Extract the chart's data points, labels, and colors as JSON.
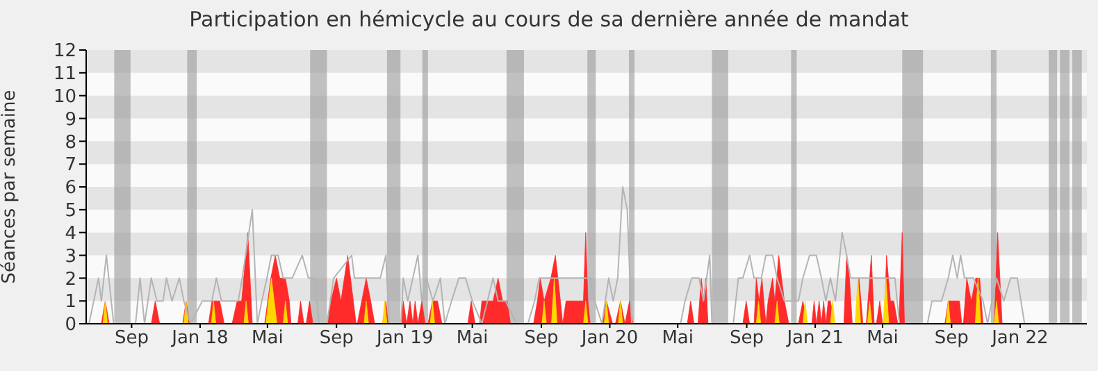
{
  "chart_data": {
    "type": "area",
    "title": "Participation en hémicycle au cours de sa dernière année de mandat",
    "ylabel": "Séances par semaine",
    "xlim": [
      "2017-06-12",
      "2022-04-30"
    ],
    "xticks": [
      {
        "value": "2017-09-01",
        "label": "Sep"
      },
      {
        "value": "2018-01-01",
        "label": "Jan 18"
      },
      {
        "value": "2018-05-01",
        "label": "Mai"
      },
      {
        "value": "2018-09-01",
        "label": "Sep"
      },
      {
        "value": "2019-01-01",
        "label": "Jan 19"
      },
      {
        "value": "2019-05-01",
        "label": "Mai"
      },
      {
        "value": "2019-09-01",
        "label": "Sep"
      },
      {
        "value": "2020-01-01",
        "label": "Jan 20"
      },
      {
        "value": "2020-05-01",
        "label": "Mai"
      },
      {
        "value": "2020-09-01",
        "label": "Sep"
      },
      {
        "value": "2021-01-01",
        "label": "Jan 21"
      },
      {
        "value": "2021-05-01",
        "label": "Mai"
      },
      {
        "value": "2021-09-01",
        "label": "Sep"
      },
      {
        "value": "2022-01-01",
        "label": "Jan 22"
      }
    ],
    "ylim": [
      0,
      12
    ],
    "yticks": [
      0,
      1,
      2,
      3,
      4,
      5,
      6,
      7,
      8,
      9,
      10,
      11,
      12
    ],
    "marker": "none",
    "bands": [
      {
        "axis": "y",
        "from": 1,
        "to": 2,
        "color": "#e4e4e4"
      },
      {
        "axis": "y",
        "from": 3,
        "to": 4,
        "color": "#e4e4e4"
      },
      {
        "axis": "y",
        "from": 5,
        "to": 6,
        "color": "#e4e4e4"
      },
      {
        "axis": "y",
        "from": 7,
        "to": 8,
        "color": "#e4e4e4"
      },
      {
        "axis": "y",
        "from": 9,
        "to": 10,
        "color": "#e4e4e4"
      },
      {
        "axis": "y",
        "from": 11,
        "to": 12,
        "color": "#e4e4e4"
      },
      {
        "axis": "x",
        "from": "2017-08-01",
        "to": "2017-08-30",
        "color": "#999999"
      },
      {
        "axis": "x",
        "from": "2017-12-09",
        "to": "2017-12-26",
        "color": "#999999"
      },
      {
        "axis": "x",
        "from": "2018-07-16",
        "to": "2018-08-15",
        "color": "#999999"
      },
      {
        "axis": "x",
        "from": "2018-11-30",
        "to": "2018-12-24",
        "color": "#999999"
      },
      {
        "axis": "x",
        "from": "2019-02-01",
        "to": "2019-02-11",
        "color": "#999999"
      },
      {
        "axis": "x",
        "from": "2019-07-01",
        "to": "2019-08-01",
        "color": "#999999"
      },
      {
        "axis": "x",
        "from": "2019-11-22",
        "to": "2019-12-07",
        "color": "#999999"
      },
      {
        "axis": "x",
        "from": "2020-02-04",
        "to": "2020-02-14",
        "color": "#999999"
      },
      {
        "axis": "x",
        "from": "2020-07-01",
        "to": "2020-07-30",
        "color": "#999999"
      },
      {
        "axis": "x",
        "from": "2020-11-19",
        "to": "2020-11-29",
        "color": "#999999"
      },
      {
        "axis": "x",
        "from": "2021-06-05",
        "to": "2021-07-12",
        "color": "#999999"
      },
      {
        "axis": "x",
        "from": "2021-11-10",
        "to": "2021-11-20",
        "color": "#999999"
      },
      {
        "axis": "x",
        "from": "2022-02-21",
        "to": "2022-03-08",
        "color": "#999999"
      },
      {
        "axis": "x",
        "from": "2022-03-13",
        "to": "2022-03-30",
        "color": "#999999"
      },
      {
        "axis": "x",
        "from": "2022-04-04",
        "to": "2022-04-21",
        "color": "#999999"
      }
    ],
    "series": [
      {
        "type": "line",
        "color": "#b4b4b4",
        "x": [
          "2017-06-17",
          "2017-07-04",
          "2017-07-09",
          "2017-07-18",
          "2017-07-31",
          "2017-09-08",
          "2017-09-16",
          "2017-09-24",
          "2017-10-06",
          "2017-10-16",
          "2017-10-27",
          "2017-11-02",
          "2017-11-12",
          "2017-11-25",
          "2017-12-03",
          "2017-12-15",
          "2018-01-05",
          "2018-01-22",
          "2018-01-30",
          "2018-02-08",
          "2018-02-21",
          "2018-03-10",
          "2018-03-17",
          "2018-04-04",
          "2018-04-13",
          "2018-04-21",
          "2018-04-30",
          "2018-05-08",
          "2018-05-20",
          "2018-05-29",
          "2018-06-14",
          "2018-07-02",
          "2018-07-13",
          "2018-07-24",
          "2018-08-01",
          "2018-08-15",
          "2018-08-27",
          "2018-09-28",
          "2018-10-03",
          "2018-11-18",
          "2018-11-28",
          "2018-12-04",
          "2018-12-25",
          "2018-12-29",
          "2019-01-06",
          "2019-01-15",
          "2019-01-24",
          "2019-01-31",
          "2019-02-08",
          "2019-02-20",
          "2019-03-05",
          "2019-03-13",
          "2019-03-25",
          "2019-04-07",
          "2019-04-19",
          "2019-05-01",
          "2019-05-18",
          "2019-06-07",
          "2019-06-16",
          "2019-06-29",
          "2019-07-19",
          "2019-08-08",
          "2019-08-20",
          "2019-08-28",
          "2019-09-14",
          "2019-10-16",
          "2019-11-15",
          "2019-11-27",
          "2019-12-05",
          "2019-12-18",
          "2019-12-30",
          "2020-01-07",
          "2020-01-15",
          "2020-01-24",
          "2020-02-01",
          "2020-02-09",
          "2020-05-06",
          "2020-05-14",
          "2020-05-26",
          "2020-06-08",
          "2020-06-16",
          "2020-06-27",
          "2020-07-01",
          "2020-08-08",
          "2020-08-17",
          "2020-08-25",
          "2020-09-06",
          "2020-09-14",
          "2020-09-27",
          "2020-10-05",
          "2020-10-17",
          "2020-10-25",
          "2020-11-07",
          "2020-12-02",
          "2020-12-10",
          "2020-12-22",
          "2021-01-03",
          "2021-01-12",
          "2021-01-20",
          "2021-01-28",
          "2021-02-06",
          "2021-02-18",
          "2021-02-26",
          "2021-03-05",
          "2021-03-23",
          "2021-04-04",
          "2021-04-20",
          "2021-05-03",
          "2021-05-15",
          "2021-05-23",
          "2021-05-31",
          "2021-07-20",
          "2021-07-28",
          "2021-08-14",
          "2021-08-26",
          "2021-09-03",
          "2021-09-11",
          "2021-09-17",
          "2021-09-24",
          "2021-10-10",
          "2021-10-27",
          "2021-11-04",
          "2021-11-20",
          "2021-12-03",
          "2021-12-15",
          "2021-12-27",
          "2022-01-09"
        ],
        "values": [
          0,
          2,
          1,
          3,
          0,
          0,
          2,
          0,
          2,
          1,
          1,
          2,
          1,
          2,
          1,
          0,
          1,
          1,
          2,
          1,
          1,
          1,
          2,
          5,
          0,
          1,
          2,
          3,
          3,
          2,
          2,
          3,
          2,
          2,
          0,
          0,
          2,
          3,
          2,
          2,
          3,
          0,
          0,
          2,
          1,
          2,
          3,
          1,
          2,
          1,
          2,
          0,
          1,
          2,
          2,
          1,
          0,
          2,
          1,
          1,
          0,
          0,
          1,
          2,
          2,
          2,
          2,
          2,
          1,
          0,
          2,
          1,
          2,
          6,
          5,
          0,
          0,
          1,
          2,
          2,
          1,
          3,
          0,
          0,
          2,
          2,
          3,
          2,
          2,
          3,
          3,
          2,
          1,
          1,
          2,
          3,
          3,
          2,
          1,
          2,
          1,
          4,
          3,
          2,
          2,
          2,
          2,
          2,
          2,
          2,
          0,
          0,
          1,
          1,
          2,
          3,
          2,
          3,
          2,
          2,
          1,
          0,
          2,
          1,
          2,
          2,
          0
        ]
      },
      {
        "color": "#ff2a2a",
        "x": [
          "2017-07-09",
          "2017-07-16",
          "2017-07-23",
          "2017-10-06",
          "2017-10-13",
          "2017-10-21",
          "2017-12-01",
          "2017-12-07",
          "2017-12-14",
          "2018-01-16",
          "2018-01-22",
          "2018-02-05",
          "2018-02-13",
          "2018-02-27",
          "2018-03-08",
          "2018-03-16",
          "2018-03-27",
          "2018-04-04",
          "2018-04-26",
          "2018-05-07",
          "2018-05-15",
          "2018-05-23",
          "2018-06-02",
          "2018-06-09",
          "2018-06-12",
          "2018-06-24",
          "2018-06-29",
          "2018-07-05",
          "2018-07-09",
          "2018-07-15",
          "2018-07-21",
          "2018-08-15",
          "2018-08-22",
          "2018-09-01",
          "2018-09-09",
          "2018-09-21",
          "2018-10-01",
          "2018-10-06",
          "2018-10-08",
          "2018-10-16",
          "2018-10-24",
          "2018-11-01",
          "2018-11-08",
          "2018-11-22",
          "2018-11-28",
          "2018-12-02",
          "2018-12-25",
          "2018-12-29",
          "2019-01-04",
          "2019-01-10",
          "2019-01-15",
          "2019-01-19",
          "2019-01-24",
          "2019-01-31",
          "2019-02-06",
          "2019-02-11",
          "2019-02-19",
          "2019-02-28",
          "2019-03-08",
          "2019-04-23",
          "2019-04-29",
          "2019-05-06",
          "2019-05-14",
          "2019-05-18",
          "2019-06-07",
          "2019-06-16",
          "2019-06-24",
          "2019-07-02",
          "2019-07-08",
          "2019-08-18",
          "2019-08-25",
          "2019-08-30",
          "2019-09-06",
          "2019-09-18",
          "2019-09-26",
          "2019-10-05",
          "2019-10-09",
          "2019-10-15",
          "2019-11-15",
          "2019-11-19",
          "2019-11-23",
          "2019-11-27",
          "2019-12-18",
          "2019-12-26",
          "2020-01-06",
          "2020-01-11",
          "2020-01-20",
          "2020-01-28",
          "2020-02-05",
          "2020-02-11",
          "2020-05-18",
          "2020-05-24",
          "2020-05-30",
          "2020-06-06",
          "2020-06-12",
          "2020-06-16",
          "2020-06-20",
          "2020-06-24",
          "2020-08-25",
          "2020-08-31",
          "2020-09-06",
          "2020-09-14",
          "2020-09-18",
          "2020-09-23",
          "2020-09-28",
          "2020-10-05",
          "2020-10-09",
          "2020-10-17",
          "2020-10-21",
          "2020-10-28",
          "2020-11-07",
          "2020-11-15",
          "2020-12-02",
          "2020-12-10",
          "2020-12-18",
          "2020-12-26",
          "2020-12-30",
          "2021-01-03",
          "2021-01-08",
          "2021-01-12",
          "2021-01-16",
          "2021-01-20",
          "2021-01-24",
          "2021-01-28",
          "2021-02-04",
          "2021-02-21",
          "2021-02-26",
          "2021-03-03",
          "2021-03-08",
          "2021-03-15",
          "2021-03-20",
          "2021-03-27",
          "2021-04-02",
          "2021-04-11",
          "2021-04-16",
          "2021-04-20",
          "2021-04-26",
          "2021-05-01",
          "2021-05-04",
          "2021-05-08",
          "2021-05-15",
          "2021-05-21",
          "2021-05-28",
          "2021-05-30",
          "2021-06-05",
          "2021-06-09",
          "2021-08-20",
          "2021-08-26",
          "2021-09-15",
          "2021-09-19",
          "2021-09-22",
          "2021-09-28",
          "2021-10-06",
          "2021-10-14",
          "2021-10-21",
          "2021-10-27",
          "2021-11-16",
          "2021-11-22",
          "2021-11-30"
        ],
        "values": [
          0,
          1,
          0,
          0,
          1,
          0,
          0,
          1,
          0,
          0,
          1,
          1,
          0,
          0,
          1,
          1,
          4,
          0,
          0,
          2,
          3,
          2,
          2,
          1,
          0,
          0,
          1,
          0,
          0,
          1,
          0,
          0,
          1,
          2,
          1,
          3,
          1,
          0,
          0,
          1,
          2,
          1,
          0,
          0,
          1,
          0,
          0,
          1,
          0,
          1,
          0,
          1,
          0,
          1,
          0,
          0,
          1,
          1,
          0,
          0,
          1,
          0,
          0,
          1,
          1,
          2,
          1,
          1,
          0,
          0,
          1,
          2,
          1,
          2,
          3,
          1,
          0,
          1,
          1,
          4,
          1,
          0,
          0,
          1,
          0,
          0,
          1,
          0,
          1,
          0,
          0,
          1,
          0,
          0,
          2,
          1,
          2,
          0,
          0,
          1,
          0,
          0,
          2,
          1,
          2,
          0,
          1,
          2,
          1,
          3,
          1,
          0,
          0,
          1,
          0,
          0,
          1,
          0,
          1,
          0,
          1,
          0,
          1,
          1,
          0,
          0,
          3,
          2,
          0,
          0,
          2,
          0,
          0,
          3,
          0,
          0,
          1,
          0,
          0,
          3,
          1,
          1,
          0,
          0,
          4,
          0,
          0,
          1,
          1,
          0,
          0,
          2,
          1,
          2,
          2,
          0,
          0,
          4,
          0
        ]
      },
      {
        "color": "#ffd700",
        "x": [
          "2017-07-12",
          "2017-07-16",
          "2017-07-20",
          "2017-12-03",
          "2017-12-07",
          "2017-12-11",
          "2018-01-21",
          "2018-01-25",
          "2018-01-29",
          "2018-03-20",
          "2018-03-24",
          "2018-03-28",
          "2018-04-28",
          "2018-05-08",
          "2018-05-18",
          "2018-05-29",
          "2018-06-02",
          "2018-06-06",
          "2018-10-20",
          "2018-10-24",
          "2018-10-28",
          "2018-11-22",
          "2018-11-26",
          "2018-11-30",
          "2019-02-15",
          "2019-02-19",
          "2019-02-23",
          "2019-09-02",
          "2019-09-06",
          "2019-09-10",
          "2019-09-19",
          "2019-09-24",
          "2019-09-29",
          "2019-11-15",
          "2019-11-19",
          "2019-11-23",
          "2019-12-22",
          "2019-12-26",
          "2019-12-30",
          "2020-01-16",
          "2020-01-20",
          "2020-01-24",
          "2020-09-18",
          "2020-09-22",
          "2020-09-26",
          "2020-10-21",
          "2020-10-25",
          "2020-10-29",
          "2020-12-10",
          "2020-12-14",
          "2020-12-18",
          "2021-01-28",
          "2021-02-01",
          "2021-02-05",
          "2021-03-13",
          "2021-03-18",
          "2021-03-23",
          "2021-04-04",
          "2021-04-08",
          "2021-04-12",
          "2021-05-02",
          "2021-05-07",
          "2021-05-12",
          "2021-08-22",
          "2021-08-26",
          "2021-08-30",
          "2021-10-13",
          "2021-10-18",
          "2021-10-23",
          "2021-11-16",
          "2021-11-20",
          "2021-11-24"
        ],
        "values": [
          0,
          1,
          0,
          0,
          1,
          0,
          0,
          1,
          0,
          0,
          1,
          0,
          0,
          2,
          0,
          0,
          1,
          0,
          0,
          1,
          0,
          0,
          1,
          0,
          0,
          1,
          0,
          0,
          1,
          0,
          0,
          2,
          0,
          0,
          1,
          0,
          0,
          1,
          0,
          0,
          1,
          0,
          0,
          1,
          0,
          0,
          1,
          0,
          0,
          1,
          0,
          0,
          1,
          0,
          0,
          2,
          0,
          0,
          1,
          0,
          0,
          2,
          0,
          0,
          1,
          0,
          0,
          2,
          0,
          0,
          1,
          0
        ]
      }
    ]
  }
}
